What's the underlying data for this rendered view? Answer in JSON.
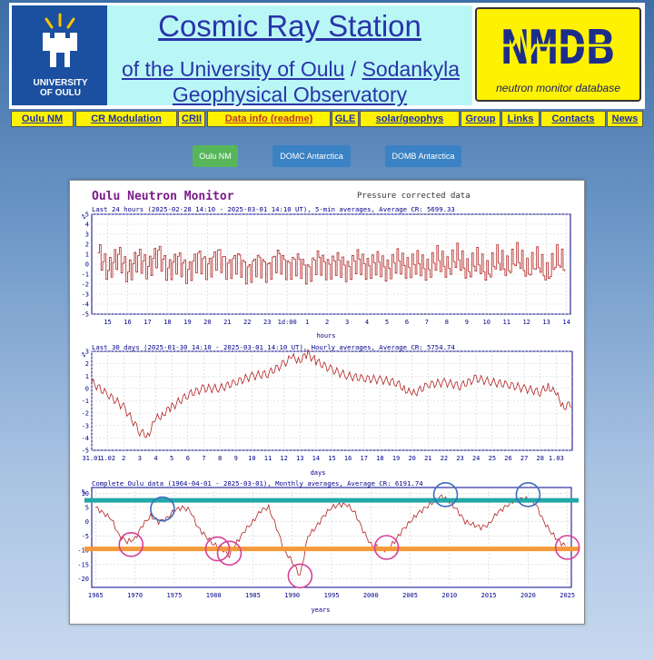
{
  "header": {
    "university_logo_text": [
      "UNIVERSITY",
      "OF OULU"
    ],
    "title": "Cosmic Ray Station",
    "subtitle_part1": "of the University of Oulu",
    "subtitle_sep": " / ",
    "subtitle_part2": "Sodankyla",
    "subtitle_part3": "Geophysical Observatory",
    "nmdb_logo": "NMDB",
    "nmdb_subtitle": "neutron monitor database"
  },
  "nav": [
    "Oulu NM",
    "CR Modulation",
    "CRII",
    "Data info (readme)",
    "GLE",
    "solar/geophys",
    "Group",
    "Links",
    "Contacts",
    "News"
  ],
  "buttons": [
    "Oulu NM",
    "DOMC Antarctica",
    "DOMB Antarctica"
  ],
  "chart_header": {
    "title": "Oulu Neutron Monitor",
    "note": "Pressure corrected data"
  },
  "colors": {
    "series": "#b22222",
    "title": "#7a1a8a",
    "teal_line": "#21a7a7",
    "orange_line": "#f39a3a",
    "blue_circle": "#3b6cc0",
    "pink_circle": "#d6409a"
  },
  "chart_data": [
    {
      "type": "line",
      "title": "Last 24 hours (2025-02-28 14:10 - 2025-03-01 14:10 UT), 5-min averages, Average CR: 5699.33",
      "ylabel": "%",
      "xlabel": "hours",
      "ylim": [
        -5,
        5
      ],
      "yticks": [
        "-5",
        "-4",
        "-3",
        "-2",
        "-1",
        "0",
        "1",
        "2",
        "3",
        "4",
        "5"
      ],
      "xticks": [
        "15",
        "16",
        "17",
        "18",
        "19",
        "20",
        "21",
        "22",
        "23",
        "1d:00",
        "1",
        "2",
        "3",
        "4",
        "5",
        "6",
        "7",
        "8",
        "9",
        "10",
        "11",
        "12",
        "13",
        "14"
      ],
      "x_range_hours": [
        14.2,
        38.2
      ],
      "series": [
        {
          "x_hours": [
            14.5,
            15,
            15.5,
            16,
            16.5,
            17,
            17.5,
            18,
            18.5,
            19,
            19.5,
            20,
            20.5,
            21,
            21.5,
            22,
            22.5,
            23,
            23.5,
            24,
            24.5,
            25,
            25.5,
            26,
            26.5,
            27,
            27.5,
            28,
            28.5,
            29,
            29.5,
            30,
            30.5,
            31,
            31.5,
            32,
            32.5,
            33,
            33.5,
            34,
            34.5,
            35,
            35.5,
            36,
            36.5,
            37,
            37.5,
            38
          ],
          "values": [
            2.5,
            -1.5,
            2,
            -2,
            1.5,
            -1,
            2.5,
            -1.5,
            1,
            -2,
            1.5,
            -1,
            2,
            -1,
            1,
            -2,
            0.5,
            -1.5,
            1.5,
            -1,
            0.5,
            -2,
            1,
            -1,
            0.5,
            -1.5,
            1,
            -1,
            0.5,
            -1.5,
            1,
            -1,
            0.5,
            -1.5,
            1.5,
            -1,
            2,
            -1.5,
            1,
            -2,
            1.5,
            -1,
            2,
            -1.5,
            1,
            -2.5,
            1.5,
            -0.5
          ]
        }
      ]
    },
    {
      "type": "line",
      "title": "Last 30 days (2025-01-30 14:10 - 2025-03-01 14:10 UT), Hourly averages, Average CR: 5754.74",
      "ylabel": "%",
      "xlabel": "days",
      "ylim": [
        -5,
        3
      ],
      "yticks": [
        "-5",
        "-4",
        "-3",
        "-2",
        "-1",
        "0",
        "1",
        "2",
        "3"
      ],
      "xticks": [
        "31.01",
        "1.02",
        "2",
        "3",
        "4",
        "5",
        "6",
        "7",
        "8",
        "9",
        "10",
        "11",
        "12",
        "13",
        "14",
        "15",
        "16",
        "17",
        "18",
        "19",
        "20",
        "21",
        "22",
        "23",
        "24",
        "25",
        "26",
        "27",
        "28",
        "1.03"
      ],
      "x_range_days": [
        0,
        30
      ],
      "series": [
        {
          "x_day": [
            0,
            1,
            2,
            3,
            3.5,
            4,
            4.5,
            5,
            6,
            7,
            8,
            9,
            10,
            11,
            12,
            12.5,
            13,
            13.5,
            14,
            15,
            16,
            17,
            18,
            19,
            19.5,
            20,
            21,
            22,
            23,
            24,
            25,
            26,
            27,
            28,
            28.5,
            29,
            29.5,
            30
          ],
          "values": [
            0.5,
            -0.5,
            -1.5,
            -3.5,
            -3.8,
            -2.5,
            -2,
            -1.5,
            -0.5,
            0,
            0,
            0.5,
            1,
            1.2,
            2,
            2.5,
            2.3,
            2.8,
            2.2,
            1.5,
            1,
            0.8,
            0.7,
            0.5,
            0,
            -0.5,
            0.3,
            0.5,
            0.2,
            0.8,
            0.5,
            0.3,
            0,
            -0.3,
            0.2,
            -0.5,
            -1.5,
            -1.2
          ]
        }
      ]
    },
    {
      "type": "line",
      "title": "Complete Oulu data (1964-04-01 - 2025-03-01), Monthly averages, Average CR: 6191.74",
      "ylabel": "%",
      "xlabel": "years",
      "ylim": [
        -23,
        12
      ],
      "yticks": [
        "-20",
        "-15",
        "-10",
        "-5",
        "0",
        "5",
        "10"
      ],
      "xticks": [
        "1965",
        "1970",
        "1975",
        "1980",
        "1985",
        "1990",
        "1995",
        "2000",
        "2005",
        "2010",
        "2015",
        "2020",
        "2025"
      ],
      "xlim": [
        1964.5,
        2025.5
      ],
      "series": [
        {
          "x_year": [
            1965,
            1966,
            1967,
            1968,
            1969,
            1970,
            1971,
            1972,
            1973,
            1974,
            1975,
            1976,
            1977,
            1978,
            1979,
            1980,
            1981,
            1982,
            1983,
            1984,
            1985,
            1986,
            1987,
            1988,
            1989,
            1990,
            1991,
            1992,
            1993,
            1994,
            1995,
            1996,
            1997,
            1998,
            1999,
            2000,
            2001,
            2002,
            2003,
            2004,
            2005,
            2006,
            2007,
            2008,
            2009,
            2010,
            2011,
            2012,
            2013,
            2014,
            2015,
            2016,
            2017,
            2018,
            2019,
            2020,
            2021,
            2022,
            2023,
            2024,
            2025
          ],
          "values": [
            5,
            3,
            1,
            -5,
            -7,
            -6,
            -1,
            2,
            0,
            1,
            4,
            5,
            4,
            -2,
            -5,
            -8,
            -9,
            -12,
            -7,
            -3,
            0,
            4,
            5,
            -2,
            -10,
            -14,
            -19,
            -5,
            -2,
            2,
            5,
            6,
            6,
            3,
            -3,
            -8,
            -9,
            -10,
            -7,
            -3,
            0,
            3,
            5,
            7,
            9,
            7,
            4,
            0,
            -1,
            -2,
            -1,
            3,
            5,
            7,
            8,
            8,
            6,
            0,
            -4,
            -7,
            -9
          ]
        }
      ],
      "annotations": {
        "horizontal_lines": [
          {
            "color": "teal",
            "y": 7.5
          },
          {
            "color": "orange",
            "y": -9.5
          }
        ],
        "blue_circles": [
          {
            "x": 1973.5,
            "y": 4.5
          },
          {
            "x": 2009.5,
            "y": 9.5
          },
          {
            "x": 2020,
            "y": 9.5
          }
        ],
        "pink_circles": [
          {
            "x": 1969.5,
            "y": -8
          },
          {
            "x": 1980.5,
            "y": -9.5
          },
          {
            "x": 1982,
            "y": -11
          },
          {
            "x": 1991,
            "y": -19
          },
          {
            "x": 2002,
            "y": -9
          },
          {
            "x": 2025,
            "y": -9
          }
        ]
      }
    }
  ]
}
